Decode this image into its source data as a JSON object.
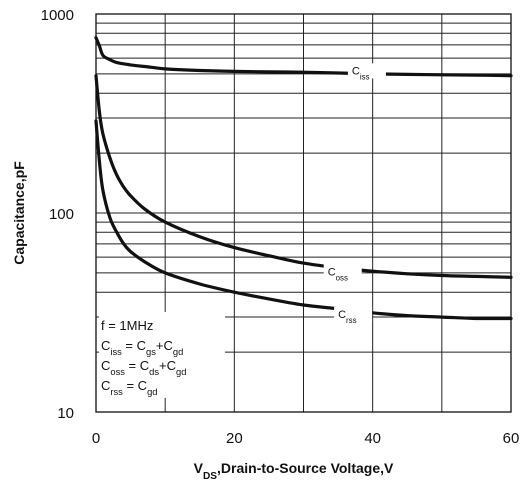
{
  "chart_data": {
    "type": "line",
    "xlabel": {
      "main": "V",
      "sub": "DS",
      "rest": ",Drain-to-Source Voltage,V"
    },
    "ylabel": "Capacitance,pF",
    "xlim": [
      0,
      60
    ],
    "ylim": [
      10,
      1000
    ],
    "yscale": "log",
    "grid": true,
    "x_ticks": [
      "0",
      "20",
      "40",
      "60"
    ],
    "y_ticks": [
      "10",
      "100",
      "1000"
    ],
    "series": [
      {
        "name": "Ciss",
        "label": {
          "main": "C",
          "sub": "iss"
        },
        "x": [
          0,
          0.5,
          1,
          2,
          3,
          5,
          8,
          10,
          15,
          20,
          25,
          30,
          35,
          40,
          45,
          50,
          55,
          60
        ],
        "y": [
          760,
          690,
          620,
          590,
          570,
          555,
          540,
          530,
          520,
          515,
          512,
          510,
          505,
          500,
          497,
          495,
          493,
          490
        ]
      },
      {
        "name": "Coss",
        "label": {
          "main": "C",
          "sub": "oss"
        },
        "x": [
          0,
          0.5,
          1,
          2,
          3,
          4,
          5,
          7,
          10,
          15,
          20,
          25,
          30,
          35,
          40,
          45,
          50,
          55,
          60
        ],
        "y": [
          490,
          320,
          250,
          190,
          155,
          135,
          122,
          105,
          90,
          76,
          67,
          61,
          56,
          53,
          51,
          49.5,
          48.5,
          48,
          47.5
        ]
      },
      {
        "name": "Crss",
        "label": {
          "main": "C",
          "sub": "rss"
        },
        "x": [
          0,
          0.5,
          1,
          2,
          3,
          4,
          5,
          7,
          10,
          15,
          20,
          25,
          30,
          35,
          40,
          45,
          50,
          55,
          60
        ],
        "y": [
          290,
          180,
          130,
          95,
          80,
          70,
          64,
          57,
          50,
          44,
          40,
          37,
          34.5,
          33,
          31.5,
          30.5,
          30,
          29.5,
          29.5
        ]
      }
    ],
    "annotations": [
      {
        "parts": [
          {
            "t": "f = 1MHz"
          }
        ]
      },
      {
        "parts": [
          {
            "t": "C"
          },
          {
            "t": "iss",
            "sub": true
          },
          {
            "t": " = C"
          },
          {
            "t": "gs",
            "sub": true
          },
          {
            "t": "+C"
          },
          {
            "t": "gd",
            "sub": true
          }
        ]
      },
      {
        "parts": [
          {
            "t": "C"
          },
          {
            "t": "oss",
            "sub": true
          },
          {
            "t": " = C"
          },
          {
            "t": "ds",
            "sub": true
          },
          {
            "t": "+C"
          },
          {
            "t": "gd",
            "sub": true
          }
        ]
      },
      {
        "parts": [
          {
            "t": "C"
          },
          {
            "t": "rss",
            "sub": true
          },
          {
            "t": " = C"
          },
          {
            "t": "gd",
            "sub": true
          }
        ]
      }
    ]
  }
}
